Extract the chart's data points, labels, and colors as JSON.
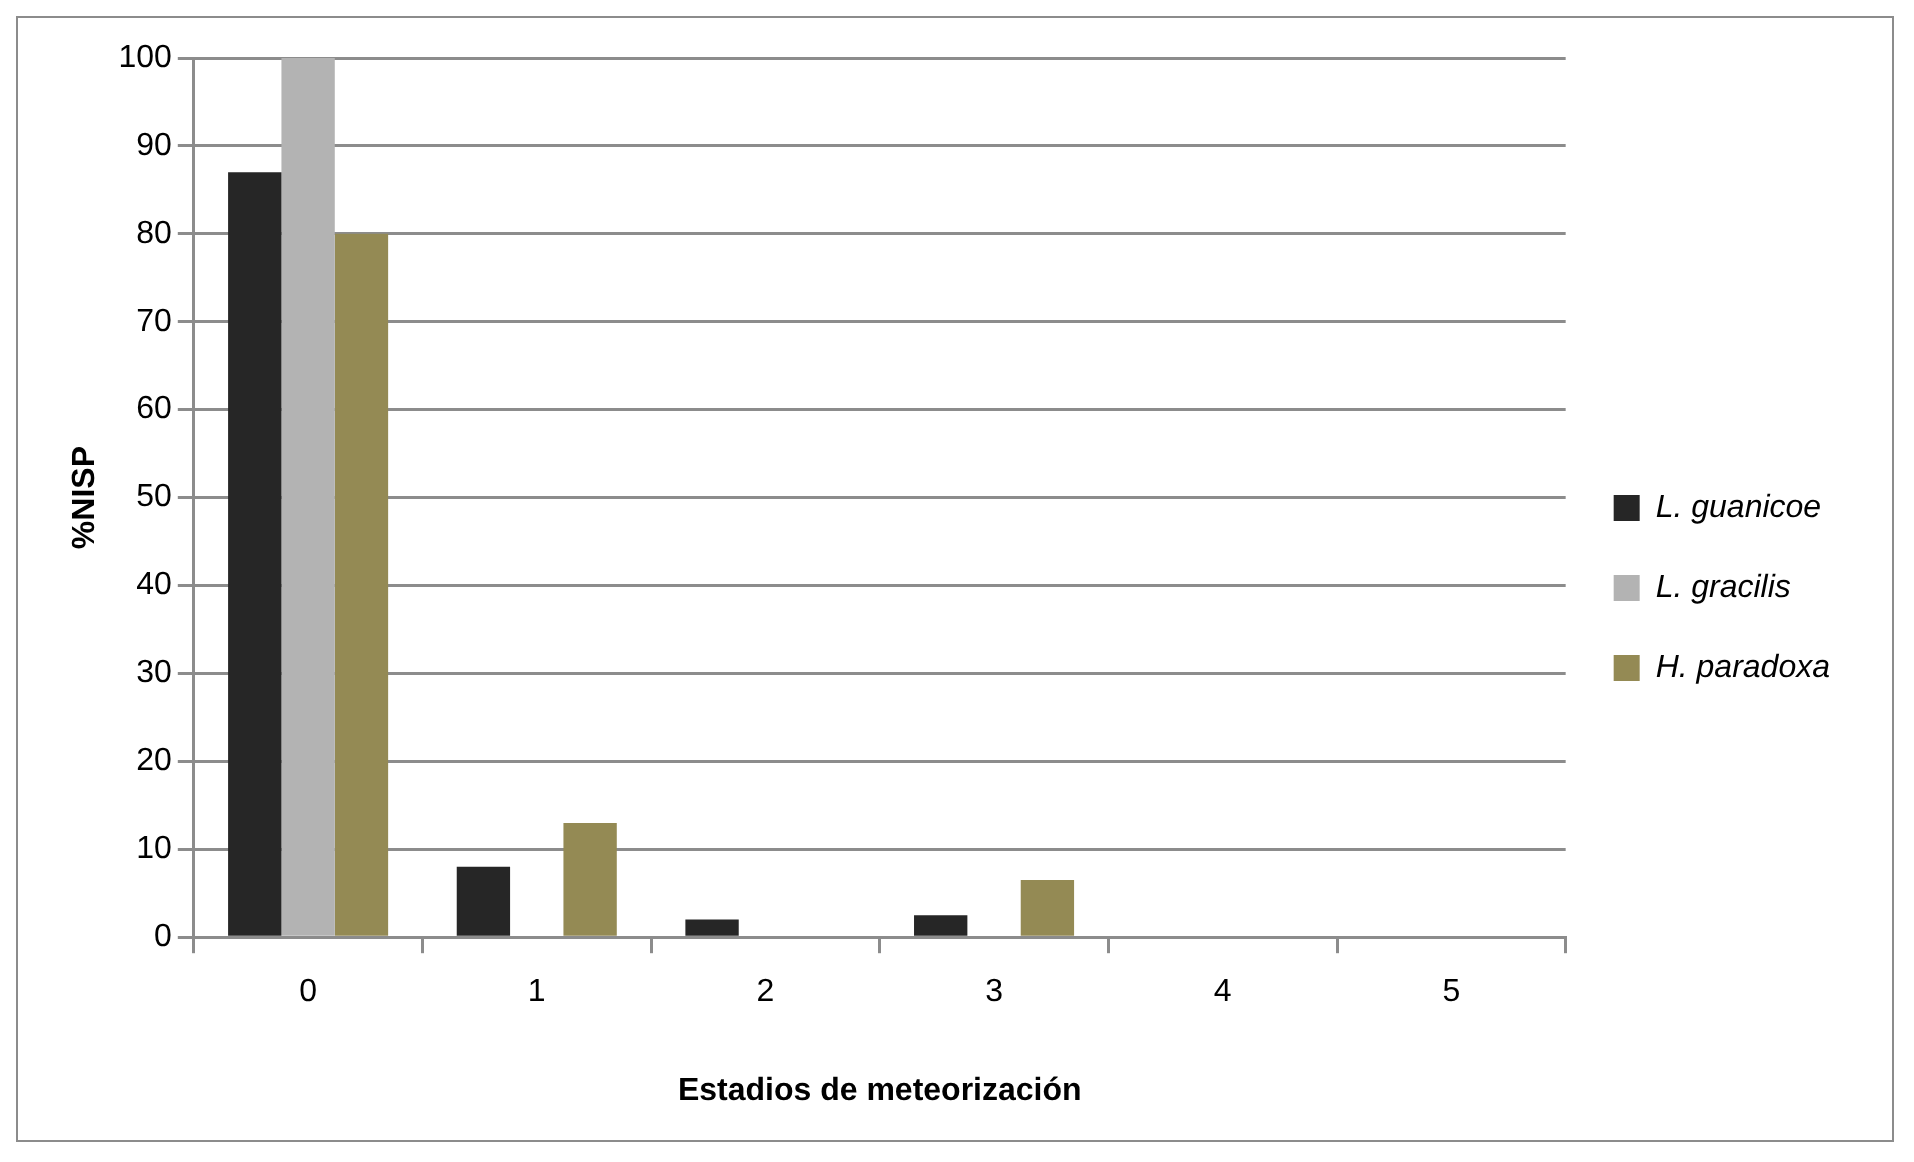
{
  "chart_data": {
    "type": "bar",
    "xlabel": "Estadios de meteorización",
    "ylabel": "%NISP",
    "categories": [
      "0",
      "1",
      "2",
      "3",
      "4",
      "5"
    ],
    "series": [
      {
        "name": "L. guanicoe",
        "color": "#262626",
        "values": [
          87,
          8,
          2,
          2.5,
          0,
          0
        ]
      },
      {
        "name": "L. gracilis",
        "color": "#b3b3b3",
        "values": [
          100,
          0,
          0,
          0,
          0,
          0
        ]
      },
      {
        "name": "H. paradoxa",
        "color": "#948a54",
        "values": [
          80,
          13,
          0,
          6.5,
          0,
          0
        ]
      }
    ],
    "ylim": [
      0,
      100
    ],
    "yticks": [
      0,
      10,
      20,
      30,
      40,
      50,
      60,
      70,
      80,
      90,
      100
    ],
    "grid": "y",
    "legend": "right"
  }
}
